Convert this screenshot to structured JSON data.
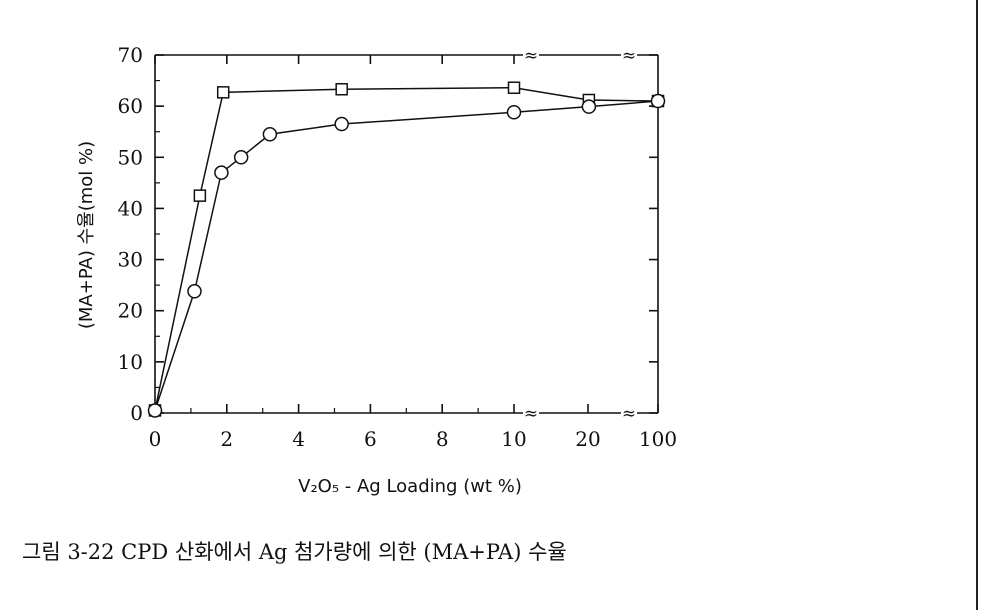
{
  "chart_data": {
    "type": "line",
    "xlabel": "V₂O₅ - Ag Loading (wt %)",
    "ylabel": "(MA+PA) 수율(mol %)",
    "x_tick_labels": [
      "0",
      "2",
      "4",
      "6",
      "8",
      "10",
      "20",
      "100"
    ],
    "y_ticks": [
      0,
      10,
      20,
      30,
      40,
      50,
      60,
      70
    ],
    "ylim": [
      0,
      70
    ],
    "x_axis_breaks": [
      "10-20",
      "20-100"
    ],
    "grid": false,
    "series": [
      {
        "marker": "square",
        "points": [
          {
            "x": 0,
            "y": 0.5
          },
          {
            "x": 1.25,
            "y": 42.5
          },
          {
            "x": 1.9,
            "y": 62.7
          },
          {
            "x": 5.2,
            "y": 63.3
          },
          {
            "x": 10,
            "y": 63.6
          },
          {
            "x": 21,
            "y": 61.2
          },
          {
            "x": 100,
            "y": 61
          }
        ]
      },
      {
        "marker": "circle",
        "points": [
          {
            "x": 0,
            "y": 0.5
          },
          {
            "x": 1.1,
            "y": 23.8
          },
          {
            "x": 1.85,
            "y": 47
          },
          {
            "x": 2.4,
            "y": 50
          },
          {
            "x": 3.2,
            "y": 54.5
          },
          {
            "x": 5.2,
            "y": 56.5
          },
          {
            "x": 10,
            "y": 58.8
          },
          {
            "x": 21,
            "y": 59.9
          },
          {
            "x": 100,
            "y": 61
          }
        ]
      }
    ]
  },
  "caption": "그림 3-22 CPD 산화에서 Ag 첨가량에 의한 (MA+PA) 수율"
}
